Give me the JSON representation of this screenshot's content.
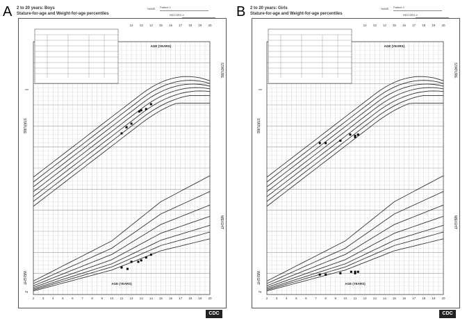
{
  "panels": [
    {
      "letter": "A",
      "title_line1": "2 to 20 years: Boys",
      "title_line2": "Stature-for-age and Weight-for-age percentiles",
      "name_label": "NAME",
      "name_value": "Patient 1",
      "record_label": "RECORD #",
      "stature_label": "STATURE",
      "weight_label": "WEIGHT",
      "age_label": "AGE (YEARS)",
      "cm_label": "cm",
      "kg_label": "kg",
      "logo": "CDC"
    },
    {
      "letter": "B",
      "title_line1": "2 to 20 years: Girls",
      "title_line2": "Stature-for-age and Weight-for-age percentiles",
      "name_label": "NAME",
      "name_value": "Patient 2",
      "record_label": "RECORD #",
      "stature_label": "STATURE",
      "weight_label": "WEIGHT",
      "age_label": "AGE (YEARS)",
      "cm_label": "cm",
      "kg_label": "kg",
      "logo": "CDC"
    }
  ],
  "chart_data": [
    {
      "type": "scatter",
      "title": "2 to 20 years: Boys",
      "subtitle": "Stature-for-age and Weight-for-age percentiles",
      "xlabel": "AGE (YEARS)",
      "x_ticks": [
        2,
        3,
        4,
        5,
        6,
        7,
        8,
        9,
        10,
        11,
        12,
        13,
        14,
        15,
        16,
        17,
        18,
        19,
        20
      ],
      "xlim": [
        2,
        20
      ],
      "stature_ylim": [
        80,
        200
      ],
      "weight_ylim": [
        10,
        105
      ],
      "series": [
        {
          "name": "Stature",
          "points": [
            [
              11.0,
              136
            ],
            [
              11.5,
              141
            ],
            [
              12.0,
              144
            ],
            [
              12.8,
              154
            ],
            [
              13.0,
              155
            ],
            [
              13.5,
              156
            ],
            [
              14.0,
              160
            ]
          ]
        },
        {
          "name": "Weight",
          "points": [
            [
              11.0,
              27
            ],
            [
              11.6,
              26
            ],
            [
              12.0,
              31
            ],
            [
              12.7,
              31
            ],
            [
              13.0,
              32
            ],
            [
              13.5,
              34
            ],
            [
              14.0,
              36
            ]
          ]
        }
      ]
    },
    {
      "type": "scatter",
      "title": "2 to 20 years: Girls",
      "subtitle": "Stature-for-age and Weight-for-age percentiles",
      "xlabel": "AGE (YEARS)",
      "x_ticks": [
        2,
        3,
        4,
        5,
        6,
        7,
        8,
        9,
        10,
        11,
        12,
        13,
        14,
        15,
        16,
        17,
        18,
        19,
        20
      ],
      "xlim": [
        2,
        20
      ],
      "stature_ylim": [
        80,
        200
      ],
      "weight_ylim": [
        10,
        105
      ],
      "series": [
        {
          "name": "Stature",
          "points": [
            [
              7.4,
              128
            ],
            [
              8.0,
              128
            ],
            [
              9.5,
              130
            ],
            [
              10.5,
              135
            ],
            [
              11.0,
              134
            ],
            [
              11.0,
              133
            ],
            [
              11.3,
              135
            ]
          ]
        },
        {
          "name": "Weight",
          "points": [
            [
              7.4,
              22
            ],
            [
              8.0,
              22
            ],
            [
              9.5,
              23
            ],
            [
              10.6,
              24
            ],
            [
              11.0,
              23
            ],
            [
              11.0,
              24
            ],
            [
              11.3,
              24
            ]
          ]
        }
      ]
    }
  ]
}
